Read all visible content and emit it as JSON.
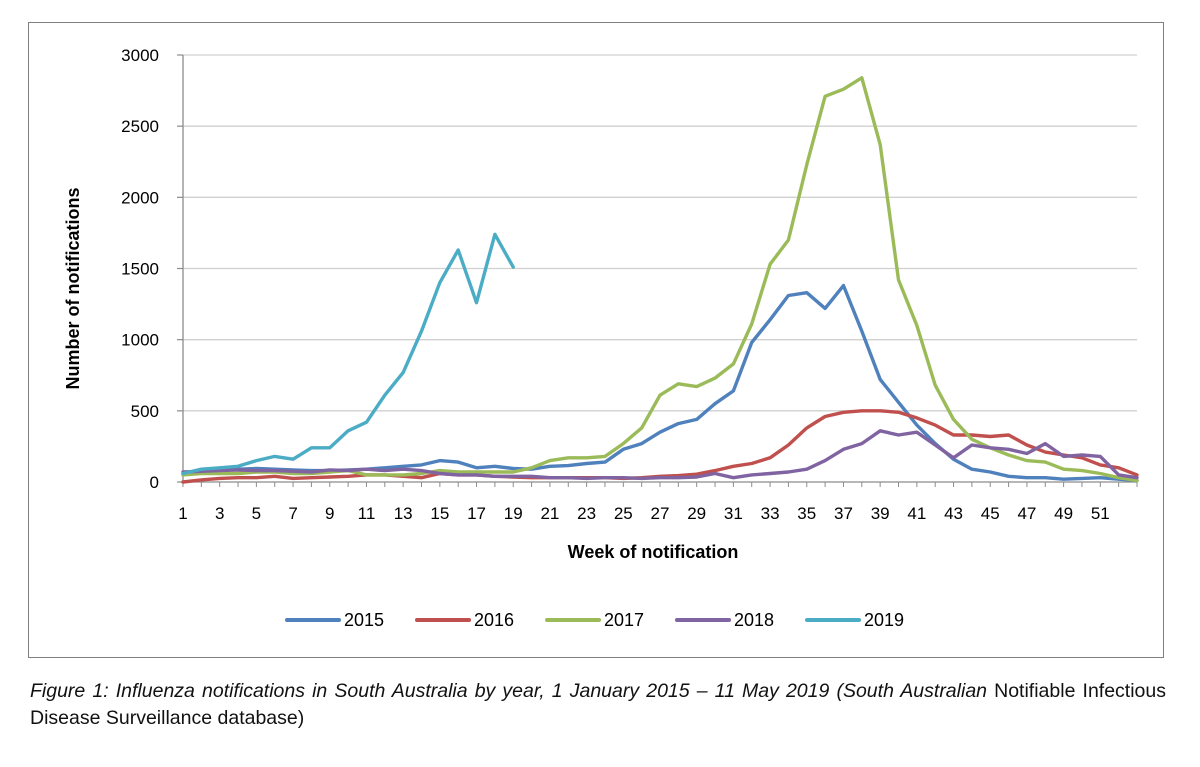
{
  "chart_data": {
    "type": "line",
    "title": "",
    "xlabel": "Week of notification",
    "ylabel": "Number of notifications",
    "ylim": [
      0,
      3000
    ],
    "yticks": [
      0,
      500,
      1000,
      1500,
      2000,
      2500,
      3000
    ],
    "xticks": [
      1,
      3,
      5,
      7,
      9,
      11,
      13,
      15,
      17,
      19,
      21,
      23,
      25,
      27,
      29,
      31,
      33,
      35,
      37,
      39,
      41,
      43,
      45,
      47,
      49,
      51
    ],
    "xlim": [
      1,
      53
    ],
    "grid": "horizontal",
    "legend_position": "bottom",
    "series": [
      {
        "name": "2015",
        "color": "#4f81bd",
        "x": [
          1,
          2,
          3,
          4,
          5,
          6,
          7,
          8,
          9,
          10,
          11,
          12,
          13,
          14,
          15,
          16,
          17,
          18,
          19,
          20,
          21,
          22,
          23,
          24,
          25,
          26,
          27,
          28,
          29,
          30,
          31,
          32,
          33,
          34,
          35,
          36,
          37,
          38,
          39,
          40,
          41,
          42,
          43,
          44,
          45,
          46,
          47,
          48,
          49,
          50,
          51,
          52,
          53
        ],
        "values": [
          60,
          80,
          85,
          90,
          95,
          90,
          85,
          80,
          80,
          85,
          90,
          100,
          110,
          120,
          150,
          140,
          100,
          110,
          95,
          90,
          110,
          115,
          130,
          140,
          230,
          270,
          350,
          410,
          440,
          550,
          640,
          980,
          1140,
          1310,
          1330,
          1220,
          1380,
          1060,
          720,
          560,
          400,
          270,
          160,
          90,
          70,
          40,
          30,
          30,
          20,
          25,
          30,
          20,
          10
        ]
      },
      {
        "name": "2016",
        "color": "#c0504d",
        "x": [
          1,
          2,
          3,
          4,
          5,
          6,
          7,
          8,
          9,
          10,
          11,
          12,
          13,
          14,
          15,
          16,
          17,
          18,
          19,
          20,
          21,
          22,
          23,
          24,
          25,
          26,
          27,
          28,
          29,
          30,
          31,
          32,
          33,
          34,
          35,
          36,
          37,
          38,
          39,
          40,
          41,
          42,
          43,
          44,
          45,
          46,
          47,
          48,
          49,
          50,
          51,
          52,
          53
        ],
        "values": [
          0,
          15,
          25,
          30,
          30,
          40,
          25,
          30,
          35,
          40,
          50,
          50,
          40,
          30,
          60,
          50,
          50,
          40,
          35,
          30,
          30,
          30,
          30,
          30,
          25,
          30,
          40,
          45,
          55,
          80,
          110,
          130,
          170,
          260,
          380,
          460,
          490,
          500,
          500,
          490,
          450,
          400,
          330,
          330,
          320,
          330,
          260,
          210,
          190,
          170,
          120,
          100,
          50
        ]
      },
      {
        "name": "2017",
        "color": "#9bbb59",
        "x": [
          1,
          2,
          3,
          4,
          5,
          6,
          7,
          8,
          9,
          10,
          11,
          12,
          13,
          14,
          15,
          16,
          17,
          18,
          19,
          20,
          21,
          22,
          23,
          24,
          25,
          26,
          27,
          28,
          29,
          30,
          31,
          32,
          33,
          34,
          35,
          36,
          37,
          38,
          39,
          40,
          41,
          42,
          43,
          44,
          45,
          46,
          47,
          48,
          49,
          50,
          51,
          52,
          53
        ],
        "values": [
          50,
          60,
          60,
          60,
          70,
          70,
          60,
          60,
          70,
          80,
          50,
          50,
          50,
          60,
          80,
          70,
          70,
          70,
          70,
          100,
          150,
          170,
          170,
          180,
          270,
          380,
          610,
          690,
          670,
          730,
          830,
          1110,
          1530,
          1700,
          2230,
          2710,
          2760,
          2840,
          2370,
          1420,
          1100,
          680,
          440,
          300,
          240,
          190,
          150,
          140,
          90,
          80,
          60,
          30,
          10
        ]
      },
      {
        "name": "2018",
        "color": "#8064a2",
        "x": [
          1,
          2,
          3,
          4,
          5,
          6,
          7,
          8,
          9,
          10,
          11,
          12,
          13,
          14,
          15,
          16,
          17,
          18,
          19,
          20,
          21,
          22,
          23,
          24,
          25,
          26,
          27,
          28,
          29,
          30,
          31,
          32,
          33,
          34,
          35,
          36,
          37,
          38,
          39,
          40,
          41,
          42,
          43,
          44,
          45,
          46,
          47,
          48,
          49,
          50,
          51,
          52,
          53
        ],
        "values": [
          70,
          75,
          80,
          85,
          80,
          80,
          75,
          70,
          85,
          80,
          90,
          80,
          90,
          80,
          60,
          50,
          50,
          40,
          40,
          40,
          30,
          30,
          25,
          30,
          30,
          25,
          30,
          30,
          35,
          60,
          30,
          50,
          60,
          70,
          90,
          150,
          230,
          270,
          360,
          330,
          350,
          260,
          170,
          260,
          240,
          230,
          200,
          270,
          180,
          190,
          180,
          50,
          30
        ]
      },
      {
        "name": "2019",
        "color": "#4bacc6",
        "x": [
          1,
          2,
          3,
          4,
          5,
          6,
          7,
          8,
          9,
          10,
          11,
          12,
          13,
          14,
          15,
          16,
          17,
          18,
          19
        ],
        "values": [
          60,
          90,
          100,
          110,
          150,
          180,
          160,
          240,
          240,
          360,
          420,
          610,
          770,
          1060,
          1400,
          1630,
          1260,
          1740,
          1510
        ]
      }
    ]
  },
  "caption": {
    "italic": "Figure 1: Influenza notifications in South Australia by year, 1 January 2015 – 11 May 2019 (South Australian",
    "normal": " Notifiable Infectious Disease Surveillance database)"
  }
}
